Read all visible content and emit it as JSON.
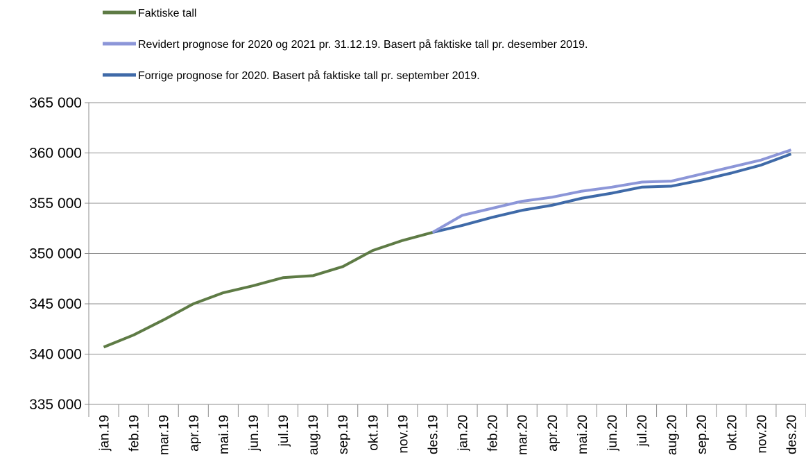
{
  "chart_data": {
    "type": "line",
    "categories": [
      "jan.19",
      "feb.19",
      "mar.19",
      "apr.19",
      "mai.19",
      "jun.19",
      "jul.19",
      "aug.19",
      "sep.19",
      "okt.19",
      "nov.19",
      "des.19",
      "jan.20",
      "feb.20",
      "mar.20",
      "apr.20",
      "mai.20",
      "jun.20",
      "jul.20",
      "aug.20",
      "sep.20",
      "okt.20",
      "nov.20",
      "des.20"
    ],
    "series": [
      {
        "name": "Faktiske tall",
        "color": "#5e7b45",
        "values": [
          340700,
          341900,
          343400,
          345000,
          346100,
          346800,
          347600,
          347800,
          348700,
          350300,
          351300,
          352100,
          null,
          null,
          null,
          null,
          null,
          null,
          null,
          null,
          null,
          null,
          null,
          null
        ]
      },
      {
        "name": "Revidert prognose for 2020 og 2021 pr. 31.12.19. Basert på faktiske tall pr. desember 2019.",
        "color": "#8c96d8",
        "values": [
          null,
          null,
          null,
          null,
          null,
          null,
          null,
          null,
          null,
          null,
          null,
          352100,
          353800,
          354500,
          355200,
          355600,
          356200,
          356600,
          357100,
          357200,
          357900,
          358600,
          359300,
          360300
        ]
      },
      {
        "name": "Forrige prognose for 2020. Basert på faktiske tall pr. september 2019.",
        "color": "#3f6aa8",
        "values": [
          null,
          null,
          null,
          null,
          null,
          null,
          null,
          null,
          null,
          null,
          null,
          352100,
          352800,
          353600,
          354300,
          354800,
          355500,
          356000,
          356600,
          356700,
          357300,
          358000,
          358800,
          359900
        ]
      }
    ],
    "ylim": [
      335000,
      365000
    ],
    "yticks": [
      {
        "value": 335000,
        "label": "335 000"
      },
      {
        "value": 340000,
        "label": "340 000"
      },
      {
        "value": 345000,
        "label": "345 000"
      },
      {
        "value": 350000,
        "label": "350 000"
      },
      {
        "value": 355000,
        "label": "355 000"
      },
      {
        "value": 360000,
        "label": "360 000"
      },
      {
        "value": 365000,
        "label": "365 000"
      }
    ],
    "grid": true
  }
}
